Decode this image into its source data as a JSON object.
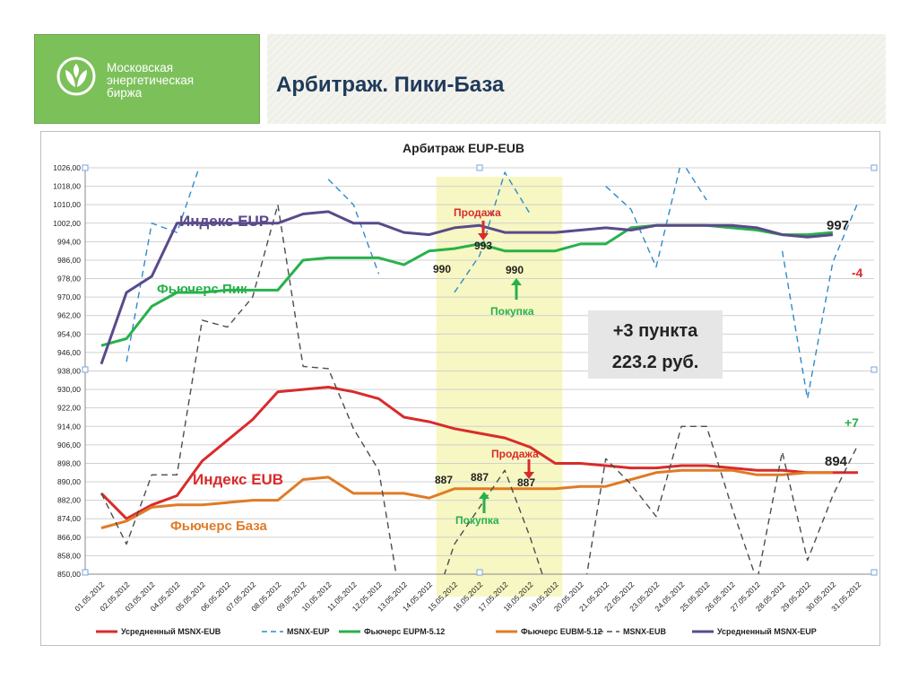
{
  "header": {
    "logo_lines": [
      "Московская",
      "энергетическая",
      "биржа"
    ],
    "page_title": "Арбитраж. Пики-База",
    "logo_icon": "leaf-logo-icon"
  },
  "chart_data": {
    "type": "line",
    "title": "Арбитраж EUP-EUB",
    "ylim": [
      850,
      1026
    ],
    "y_ticks": [
      850,
      858,
      866,
      874,
      882,
      890,
      898,
      906,
      914,
      922,
      930,
      938,
      946,
      954,
      962,
      970,
      978,
      986,
      994,
      1002,
      1010,
      1018,
      1026
    ],
    "x": [
      "01.05.2012",
      "02.05.2012",
      "03.05.2012",
      "04.05.2012",
      "05.05.2012",
      "06.05.2012",
      "07.05.2012",
      "08.05.2012",
      "09.05.2012",
      "10.05.2012",
      "11.05.2012",
      "12.05.2012",
      "13.05.2012",
      "14.05.2012",
      "15.05.2012",
      "16.05.2012",
      "17.05.2012",
      "18.05.2012",
      "19.05.2012",
      "20.05.2012",
      "21.05.2012",
      "22.05.2012",
      "23.05.2012",
      "24.05.2012",
      "25.05.2012",
      "26.05.2012",
      "27.05.2012",
      "28.05.2012",
      "29.05.2012",
      "30.05.2012",
      "31.05.2012"
    ],
    "grid": true,
    "legend_position": "bottom",
    "highlight_range": [
      "14.05.2012",
      "19.05.2012"
    ],
    "series": [
      {
        "name": "Усредненный MSNX-EUB",
        "color": "#d92b2b",
        "dash": "solid",
        "width": 3,
        "values": [
          885,
          874,
          880,
          884,
          899,
          908,
          917,
          929,
          930,
          931,
          929,
          926,
          918,
          916,
          913,
          911,
          909,
          905,
          898,
          898,
          897,
          896,
          896,
          897,
          897,
          896,
          895,
          895,
          894,
          894,
          894
        ]
      },
      {
        "name": "MSNX-EUP",
        "color": "#2e8bc9",
        "dash": "dashed",
        "width": 1.4,
        "values": [
          null,
          942,
          1002,
          998,
          1030,
          null,
          null,
          null,
          null,
          1021,
          1010,
          980,
          null,
          null,
          972,
          988,
          1024,
          1006,
          null,
          null,
          1018,
          1008,
          983,
          1029,
          1012,
          null,
          null,
          990,
          926,
          985,
          1011
        ]
      },
      {
        "name": "Фьючерс EUPM-5.12",
        "color": "#27b14b",
        "dash": "solid",
        "width": 3,
        "values": [
          949,
          952,
          966,
          972,
          972,
          973,
          973,
          973,
          986,
          987,
          987,
          987,
          984,
          990,
          991,
          993,
          990,
          990,
          990,
          993,
          993,
          1000,
          1001,
          1001,
          1001,
          1000,
          999,
          997,
          997,
          998,
          null
        ]
      },
      {
        "name": "Фьючерс EUBM-5.12",
        "color": "#e07b27",
        "dash": "solid",
        "width": 3,
        "values": [
          870,
          873,
          879,
          880,
          880,
          881,
          882,
          882,
          891,
          892,
          885,
          885,
          885,
          883,
          887,
          887,
          887,
          887,
          887,
          888,
          888,
          891,
          894,
          895,
          895,
          895,
          893,
          893,
          894,
          894,
          null
        ]
      },
      {
        "name": "MSNX-EUB",
        "color": "#4d4d4d",
        "dash": "dashed",
        "width": 1.4,
        "values": [
          885,
          863,
          893,
          893,
          960,
          957,
          970,
          1010,
          940,
          939,
          913,
          895,
          830,
          830,
          863,
          879,
          895,
          866,
          833,
          833,
          900,
          889,
          875,
          914,
          914,
          879,
          847,
          903,
          856,
          884,
          906
        ]
      },
      {
        "name": "Усредненный MSNX-EUP",
        "color": "#5a4a8a",
        "dash": "solid",
        "width": 3,
        "values": [
          941,
          972,
          979,
          1002,
          1002,
          1002,
          1002,
          1002,
          1006,
          1007,
          1002,
          1002,
          998,
          997,
          1000,
          1001,
          998,
          998,
          998,
          999,
          1000,
          999,
          1001,
          1001,
          1001,
          1001,
          1000,
          997,
          996,
          997,
          null
        ]
      }
    ],
    "annotations": {
      "index_eup": "Индекс EUP",
      "fut_peak": "Фьючерс Пик",
      "index_eub": "Индекс EUB",
      "fut_base": "Фьючерс База",
      "sell_top": "Продажа",
      "buy_top": "Покупка",
      "sell_bottom": "Продажа",
      "buy_bottom": "Покупка",
      "v990a": "990",
      "v993": "993",
      "v990b": "990",
      "v887a": "887",
      "v887b": "887",
      "v887c": "887",
      "v997": "997",
      "vminus4": "-4",
      "v894": "894",
      "vplus7": "+7",
      "profit_points": "+3 пункта",
      "profit_rub": "223.2 руб."
    }
  }
}
